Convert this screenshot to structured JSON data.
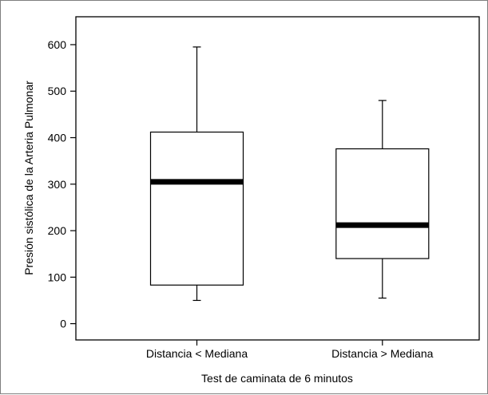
{
  "chart_data": {
    "type": "box",
    "title": "",
    "xlabel": "Test de caminata de 6 minutos",
    "ylabel": "Presión sistólica de la Arteria Pulmonar",
    "ylim": [
      -35,
      660
    ],
    "yticks": [
      0,
      100,
      200,
      300,
      400,
      500,
      600
    ],
    "grid": false,
    "categories": [
      "Distancia < Mediana",
      "Distancia > Mediana"
    ],
    "boxes": [
      {
        "category": "Distancia < Mediana",
        "whisker_low": 50,
        "q1": 83,
        "median": 305,
        "q3": 412,
        "whisker_high": 595
      },
      {
        "category": "Distancia > Mediana",
        "whisker_low": 55,
        "q1": 140,
        "median": 212,
        "q3": 376,
        "whisker_high": 480
      }
    ]
  }
}
